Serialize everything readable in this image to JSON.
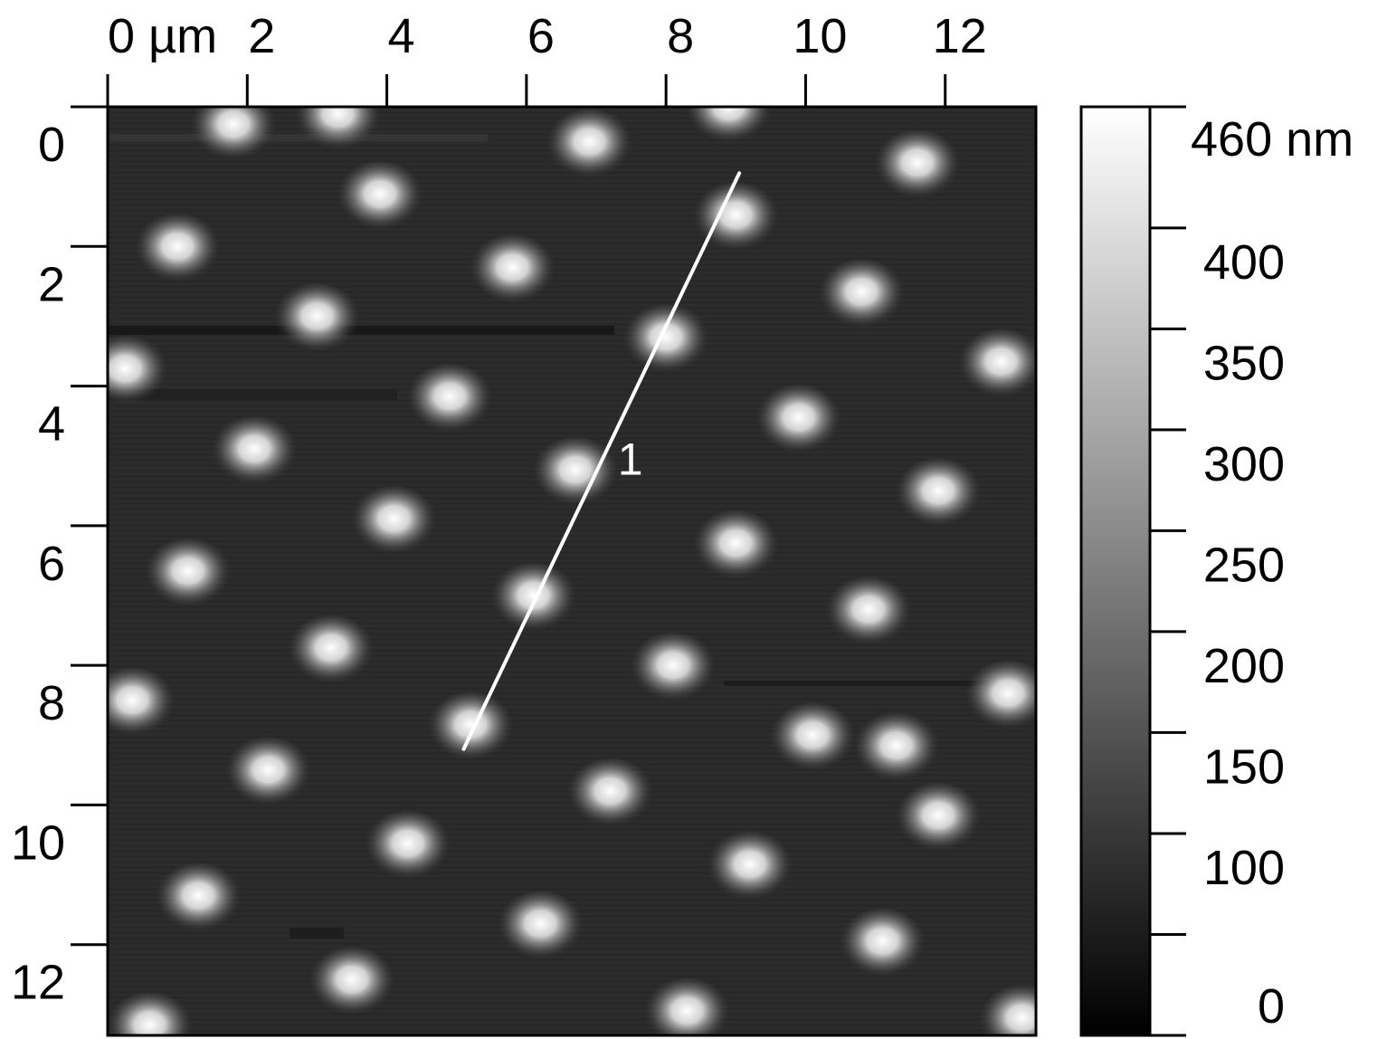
{
  "image": {
    "top_axis": {
      "ticks": [
        {
          "value": 0,
          "label": "0 µm"
        },
        {
          "value": 2,
          "label": "2"
        },
        {
          "value": 4,
          "label": "4"
        },
        {
          "value": 6,
          "label": "6"
        },
        {
          "value": 8,
          "label": "8"
        },
        {
          "value": 10,
          "label": "10"
        },
        {
          "value": 12,
          "label": "12"
        }
      ],
      "range": [
        0,
        13.3
      ]
    },
    "left_axis": {
      "ticks": [
        {
          "value": 0,
          "label": "0"
        },
        {
          "value": 2,
          "label": "2"
        },
        {
          "value": 4,
          "label": "4"
        },
        {
          "value": 6,
          "label": "6"
        },
        {
          "value": 8,
          "label": "8"
        },
        {
          "value": 10,
          "label": "10"
        },
        {
          "value": 12,
          "label": "12"
        }
      ],
      "range": [
        0,
        13.3
      ]
    },
    "colorbar": {
      "range": [
        0,
        460
      ],
      "ticks": [
        {
          "value": 460,
          "label": "460 nm"
        },
        {
          "value": 400,
          "label": "400"
        },
        {
          "value": 350,
          "label": "350"
        },
        {
          "value": 300,
          "label": "300"
        },
        {
          "value": 250,
          "label": "250"
        },
        {
          "value": 200,
          "label": "200"
        },
        {
          "value": 150,
          "label": "150"
        },
        {
          "value": 100,
          "label": "100"
        },
        {
          "value": 50,
          "label": ""
        },
        {
          "value": 0,
          "label": "0"
        }
      ],
      "colors": [
        "#000000",
        "#ffffff"
      ]
    },
    "profile_line": {
      "label": "1",
      "start": [
        5.1,
        9.2
      ],
      "end": [
        9.05,
        0.95
      ],
      "color": "#ffffff"
    },
    "background_color": "#2a2a2a",
    "particles": [
      [
        1.8,
        0.3
      ],
      [
        3.3,
        0.15
      ],
      [
        6.9,
        0.55
      ],
      [
        8.9,
        0.05
      ],
      [
        11.6,
        0.85
      ],
      [
        3.9,
        1.3
      ],
      [
        9.0,
        1.6
      ],
      [
        1.0,
        2.05
      ],
      [
        5.8,
        2.35
      ],
      [
        10.8,
        2.7
      ],
      [
        3.0,
        3.05
      ],
      [
        8.0,
        3.35
      ],
      [
        0.25,
        3.8
      ],
      [
        12.8,
        3.7
      ],
      [
        4.9,
        4.2
      ],
      [
        9.9,
        4.5
      ],
      [
        2.1,
        4.95
      ],
      [
        6.7,
        5.25
      ],
      [
        11.9,
        5.55
      ],
      [
        4.1,
        5.95
      ],
      [
        9.0,
        6.3
      ],
      [
        1.15,
        6.7
      ],
      [
        6.1,
        7.05
      ],
      [
        10.9,
        7.25
      ],
      [
        3.2,
        7.8
      ],
      [
        8.1,
        8.05
      ],
      [
        0.35,
        8.55
      ],
      [
        12.9,
        8.45
      ],
      [
        5.2,
        8.9
      ],
      [
        10.1,
        9.05
      ],
      [
        11.3,
        9.2
      ],
      [
        2.3,
        9.55
      ],
      [
        7.2,
        9.85
      ],
      [
        11.9,
        10.2
      ],
      [
        4.3,
        10.6
      ],
      [
        9.2,
        10.9
      ],
      [
        1.3,
        11.35
      ],
      [
        6.2,
        11.75
      ],
      [
        11.1,
        12.0
      ],
      [
        3.5,
        12.55
      ],
      [
        8.3,
        13.0
      ],
      [
        0.6,
        13.2
      ],
      [
        13.1,
        13.1
      ]
    ]
  }
}
